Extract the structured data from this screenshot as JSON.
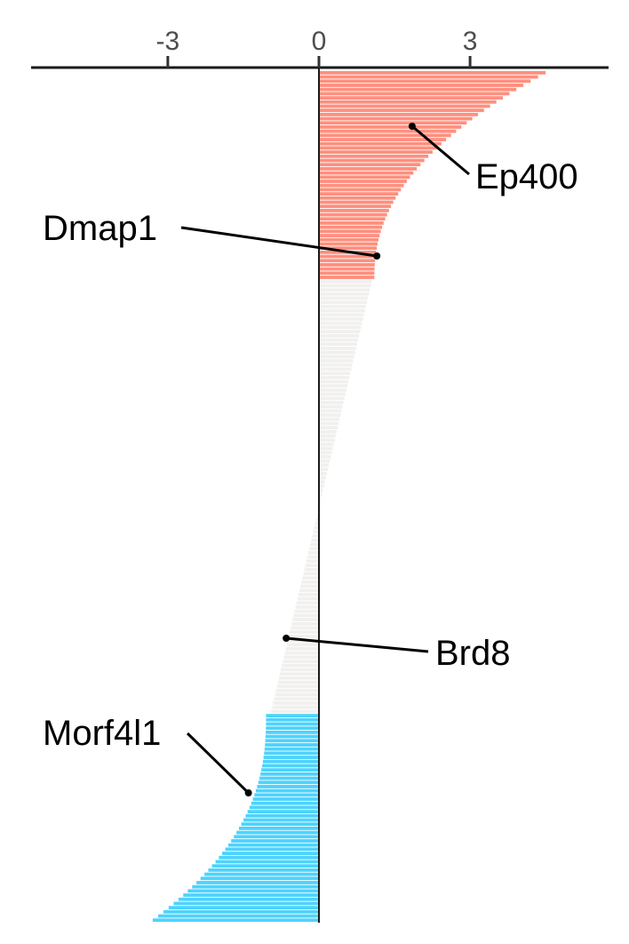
{
  "chart_data": {
    "type": "bar",
    "orientation": "horizontal",
    "sorted": "descending",
    "xlim": [
      -5.7,
      5.7
    ],
    "x_ticks": [
      {
        "value": -3,
        "label": "-3"
      },
      {
        "value": 0,
        "label": "0"
      },
      {
        "value": 3,
        "label": "3"
      }
    ],
    "grid": false,
    "legend": "none",
    "colors": {
      "up": "#ff8f7e",
      "neutral": "#f1f0ee",
      "down": "#4dd3fd",
      "axis": "#1a1a1a",
      "annotation": "#000000"
    },
    "groups": [
      {
        "name": "up",
        "color_key": "up",
        "n": 50,
        "start": 4.5,
        "end": 1.1
      },
      {
        "name": "neutral",
        "color_key": "neutral",
        "n": 104,
        "start": 1.05,
        "end": -0.95
      },
      {
        "name": "down",
        "color_key": "down",
        "n": 50,
        "start": -1.05,
        "end": -3.3
      }
    ],
    "annotations": [
      {
        "label": "Ep400",
        "value": 1.85
      },
      {
        "label": "Dmap1",
        "value": 1.15
      },
      {
        "label": "Brd8",
        "value": -0.65
      },
      {
        "label": "Morf4l1",
        "value": -1.4
      }
    ]
  }
}
